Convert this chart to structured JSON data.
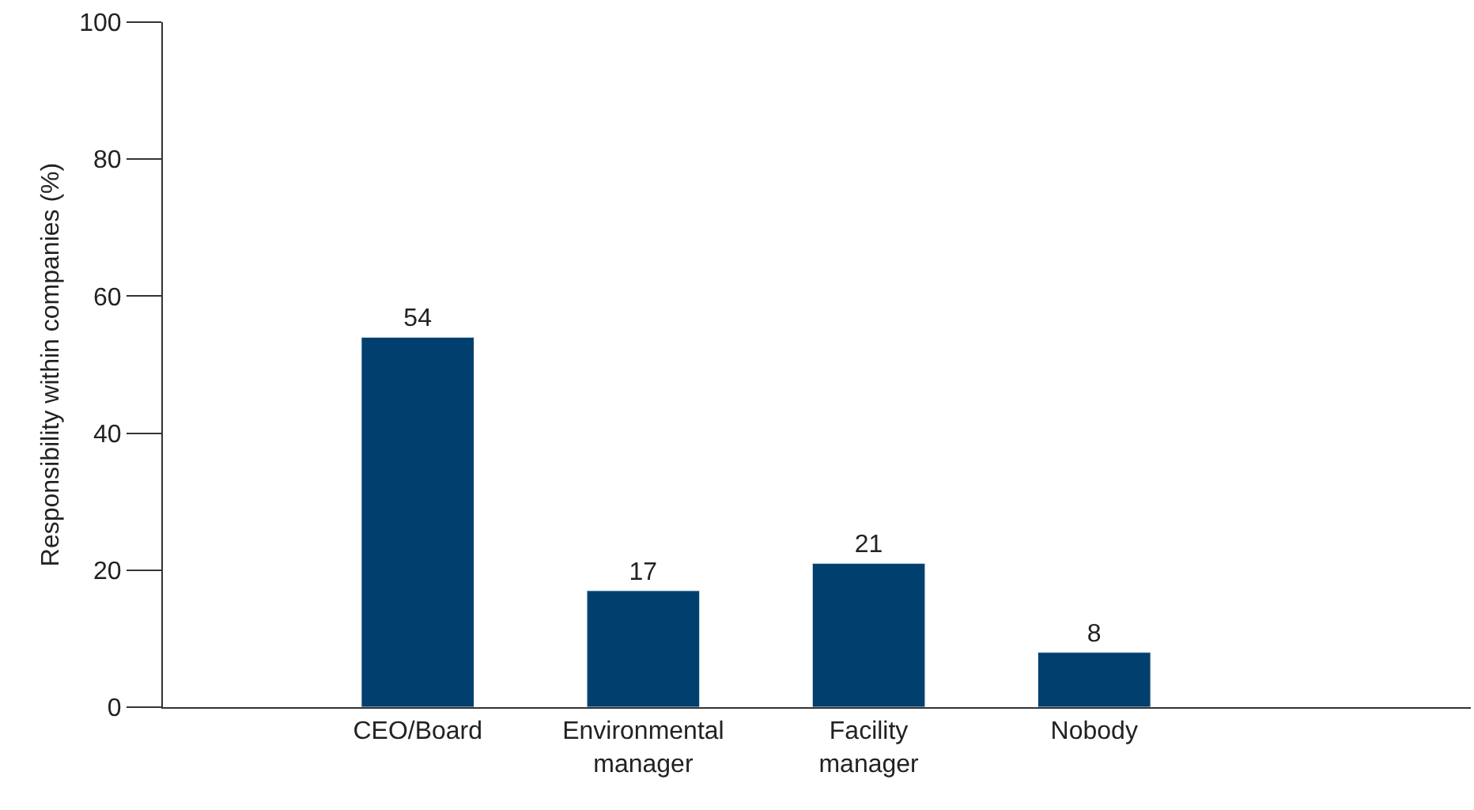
{
  "chart_data": {
    "type": "bar",
    "ylabel": "Responsibility within companies (%)",
    "categories": [
      "CEO/Board",
      "Environmental\nmanager",
      "Facility\nmanager",
      "Nobody"
    ],
    "values": [
      54,
      17,
      21,
      8
    ],
    "color": "#003f6e",
    "ylim": [
      0,
      100
    ],
    "yticks": [
      0,
      20,
      40,
      60,
      80,
      100
    ],
    "data_labels": true
  }
}
